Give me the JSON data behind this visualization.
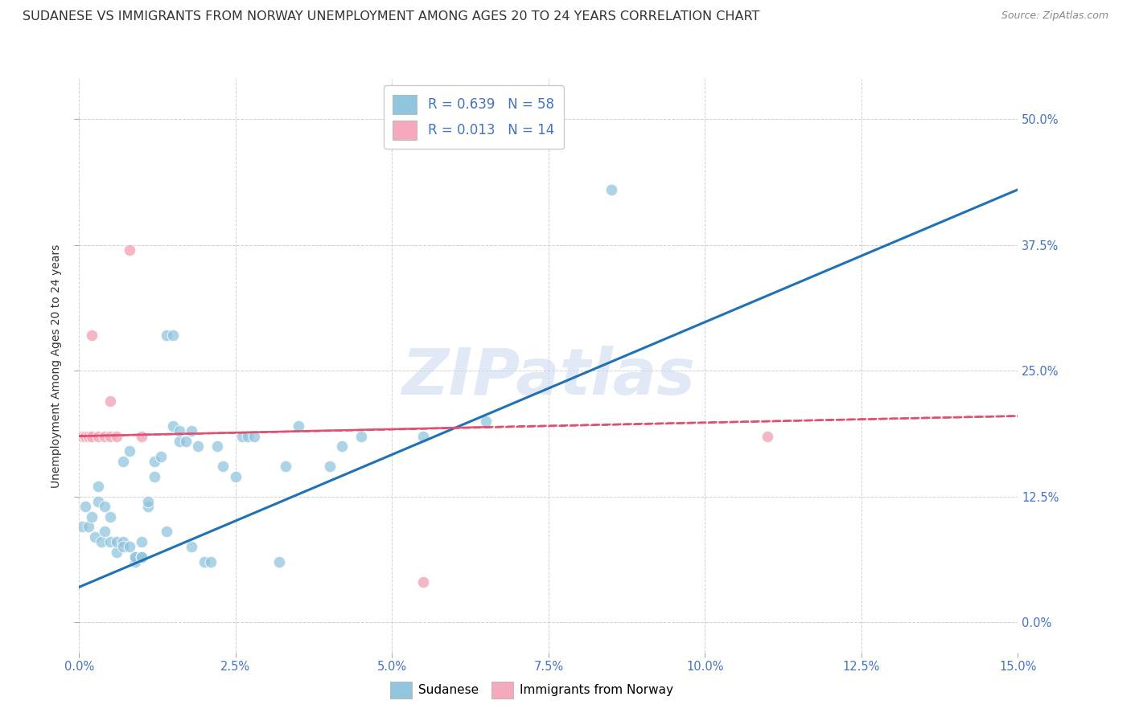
{
  "title": "SUDANESE VS IMMIGRANTS FROM NORWAY UNEMPLOYMENT AMONG AGES 20 TO 24 YEARS CORRELATION CHART",
  "source": "Source: ZipAtlas.com",
  "ylabel_label": "Unemployment Among Ages 20 to 24 years",
  "xlim": [
    0.0,
    0.15
  ],
  "ylim": [
    -0.03,
    0.54
  ],
  "watermark": "ZIPatlas",
  "legend_label1": "Sudanese",
  "legend_label2": "Immigrants from Norway",
  "R1": "0.639",
  "N1": "58",
  "R2": "0.013",
  "N2": "14",
  "scatter_blue": [
    [
      0.0005,
      0.095
    ],
    [
      0.001,
      0.115
    ],
    [
      0.0015,
      0.095
    ],
    [
      0.002,
      0.105
    ],
    [
      0.0025,
      0.085
    ],
    [
      0.003,
      0.12
    ],
    [
      0.003,
      0.135
    ],
    [
      0.0035,
      0.08
    ],
    [
      0.004,
      0.115
    ],
    [
      0.004,
      0.09
    ],
    [
      0.005,
      0.105
    ],
    [
      0.005,
      0.08
    ],
    [
      0.006,
      0.07
    ],
    [
      0.006,
      0.08
    ],
    [
      0.007,
      0.08
    ],
    [
      0.007,
      0.075
    ],
    [
      0.007,
      0.16
    ],
    [
      0.008,
      0.17
    ],
    [
      0.008,
      0.075
    ],
    [
      0.009,
      0.06
    ],
    [
      0.009,
      0.065
    ],
    [
      0.009,
      0.065
    ],
    [
      0.01,
      0.065
    ],
    [
      0.01,
      0.065
    ],
    [
      0.01,
      0.065
    ],
    [
      0.01,
      0.08
    ],
    [
      0.011,
      0.115
    ],
    [
      0.011,
      0.12
    ],
    [
      0.012,
      0.145
    ],
    [
      0.012,
      0.16
    ],
    [
      0.013,
      0.165
    ],
    [
      0.014,
      0.285
    ],
    [
      0.014,
      0.09
    ],
    [
      0.015,
      0.195
    ],
    [
      0.015,
      0.285
    ],
    [
      0.016,
      0.18
    ],
    [
      0.016,
      0.19
    ],
    [
      0.017,
      0.18
    ],
    [
      0.018,
      0.19
    ],
    [
      0.018,
      0.075
    ],
    [
      0.019,
      0.175
    ],
    [
      0.02,
      0.06
    ],
    [
      0.021,
      0.06
    ],
    [
      0.022,
      0.175
    ],
    [
      0.023,
      0.155
    ],
    [
      0.025,
      0.145
    ],
    [
      0.026,
      0.185
    ],
    [
      0.027,
      0.185
    ],
    [
      0.028,
      0.185
    ],
    [
      0.032,
      0.06
    ],
    [
      0.033,
      0.155
    ],
    [
      0.035,
      0.195
    ],
    [
      0.04,
      0.155
    ],
    [
      0.042,
      0.175
    ],
    [
      0.045,
      0.185
    ],
    [
      0.055,
      0.185
    ],
    [
      0.065,
      0.2
    ],
    [
      0.085,
      0.43
    ]
  ],
  "scatter_pink": [
    [
      0.0005,
      0.185
    ],
    [
      0.001,
      0.185
    ],
    [
      0.0015,
      0.185
    ],
    [
      0.002,
      0.185
    ],
    [
      0.002,
      0.285
    ],
    [
      0.003,
      0.185
    ],
    [
      0.004,
      0.185
    ],
    [
      0.005,
      0.185
    ],
    [
      0.005,
      0.22
    ],
    [
      0.006,
      0.185
    ],
    [
      0.008,
      0.37
    ],
    [
      0.01,
      0.185
    ],
    [
      0.055,
      0.04
    ],
    [
      0.11,
      0.185
    ]
  ],
  "blue_line_x": [
    0.0,
    0.15
  ],
  "blue_line_y": [
    0.035,
    0.43
  ],
  "pink_line_x": [
    0.0,
    0.15
  ],
  "pink_line_y": [
    0.185,
    0.205
  ],
  "color_blue": "#92c5de",
  "color_pink": "#f4a9bc",
  "color_blue_line": "#2171b5",
  "color_pink_line": "#e05070",
  "background_color": "#ffffff",
  "grid_color": "#cccccc",
  "title_fontsize": 11.5,
  "axis_label_fontsize": 10,
  "tick_fontsize": 10.5,
  "scatter_size": 110
}
